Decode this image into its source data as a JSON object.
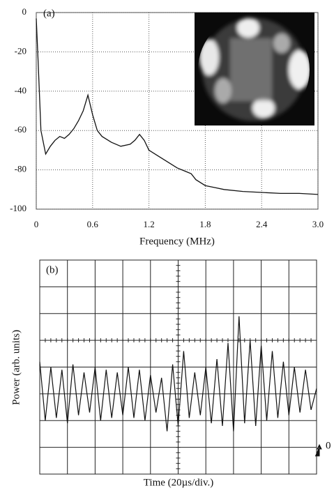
{
  "chart_data": [
    {
      "type": "line",
      "panel_label": "(a)",
      "x_label": "Frequency (MHz)",
      "grid": true,
      "color": "#111111",
      "xlim": [
        0,
        3
      ],
      "ylim": [
        -100,
        0
      ],
      "xticks": [
        0,
        0.6,
        1.2,
        1.8,
        2.4,
        {
          "value": 3,
          "label": "3.0"
        }
      ],
      "yticks": [
        0,
        -20,
        -40,
        -60,
        -80,
        -100
      ],
      "x": [
        0,
        0.02,
        0.05,
        0.1,
        0.15,
        0.2,
        0.25,
        0.3,
        0.35,
        0.4,
        0.45,
        0.5,
        0.55,
        0.6,
        0.65,
        0.7,
        0.8,
        0.9,
        1.0,
        1.05,
        1.1,
        1.15,
        1.2,
        1.3,
        1.4,
        1.5,
        1.6,
        1.65,
        1.7,
        1.8,
        1.9,
        2.0,
        2.2,
        2.4,
        2.6,
        2.8,
        3.0
      ],
      "values": [
        -3,
        -25,
        -60,
        -72,
        -68,
        -65,
        -63,
        -64,
        -62,
        -59,
        -55,
        -50,
        -42,
        -52,
        -60,
        -63,
        -66,
        -68,
        -67,
        -65,
        -62,
        -65,
        -70,
        -73,
        -76,
        -79,
        -81,
        -82,
        -85,
        -88,
        -89,
        -90,
        -91,
        -91.5,
        -92,
        -92,
        -92.5
      ]
    },
    {
      "type": "line",
      "panel_label": "(b)",
      "x_label": "Time (20µs/div.)",
      "y_label": "Power (arb. units)",
      "marker_label": "0",
      "grid": true,
      "color": "#111111",
      "xlim": [
        0,
        10
      ],
      "ylim": [
        0,
        8
      ],
      "x": [
        0,
        0.2,
        0.4,
        0.6,
        0.8,
        1,
        1.2,
        1.4,
        1.6,
        1.8,
        2,
        2.2,
        2.4,
        2.6,
        2.8,
        3,
        3.2,
        3.4,
        3.6,
        3.8,
        4,
        4.2,
        4.4,
        4.6,
        4.8,
        5,
        5.2,
        5.4,
        5.6,
        5.8,
        6,
        6.2,
        6.4,
        6.6,
        6.8,
        7,
        7.2,
        7.4,
        7.6,
        7.8,
        8,
        8.2,
        8.4,
        8.6,
        8.8,
        9,
        9.2,
        9.4,
        9.6,
        9.8,
        10
      ],
      "values": [
        4.2,
        2.0,
        4.0,
        2.1,
        3.9,
        1.9,
        4.1,
        2.2,
        3.8,
        2.3,
        4.0,
        2.0,
        3.9,
        2.1,
        3.8,
        2.2,
        4.0,
        2.1,
        3.9,
        2.0,
        3.7,
        2.3,
        3.6,
        1.6,
        4.1,
        1.8,
        4.6,
        2.1,
        3.8,
        2.2,
        4.0,
        1.9,
        4.3,
        1.8,
        4.9,
        1.6,
        5.9,
        1.9,
        5.0,
        1.8,
        4.8,
        2.0,
        4.6,
        2.1,
        4.2,
        2.2,
        4.0,
        2.3,
        3.9,
        2.4,
        3.2
      ]
    }
  ]
}
